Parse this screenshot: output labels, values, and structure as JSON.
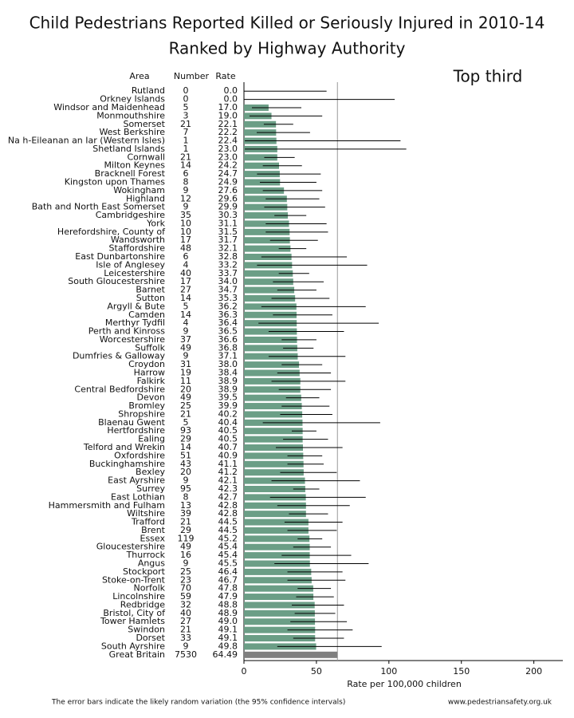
{
  "chart_data": {
    "type": "bar",
    "title": "Child Pedestrians Reported Killed or Seriously Injured in 2010-14",
    "subtitle": "Ranked by Highway Authority",
    "annotation": "Top third",
    "column_headers": [
      "Area",
      "Number",
      "Rate"
    ],
    "xlabel": "Rate per 100,000 children",
    "footnote": "The error bars indicate the likely random variation (the 95% confidence intervals)",
    "source": "www.pedestriansafety.org.uk",
    "categories": [
      "Rutland",
      "Orkney Islands",
      "Windsor and Maidenhead",
      "Monmouthshire",
      "Somerset",
      "West Berkshire",
      "Na h-Eileanan an Iar (Western Isles)",
      "Shetland Islands",
      "Cornwall",
      "Milton Keynes",
      "Bracknell Forest",
      "Kingston upon Thames",
      "Wokingham",
      "Highland",
      "Bath and North East Somerset",
      "Cambridgeshire",
      "York",
      "Herefordshire, County of",
      "Wandsworth",
      "Staffordshire",
      "East Dunbartonshire",
      "Isle of Anglesey",
      "Leicestershire",
      "South Gloucestershire",
      "Barnet",
      "Sutton",
      "Argyll & Bute",
      "Camden",
      "Merthyr Tydfil",
      "Perth and Kinross",
      "Worcestershire",
      "Suffolk",
      "Dumfries & Galloway",
      "Croydon",
      "Harrow",
      "Falkirk",
      "Central Bedfordshire",
      "Devon",
      "Bromley",
      "Shropshire",
      "Blaenau Gwent",
      "Hertfordshire",
      "Ealing",
      "Telford and Wrekin",
      "Oxfordshire",
      "Buckinghamshire",
      "Bexley",
      "East Ayrshire",
      "Surrey",
      "East Lothian",
      "Hammersmith and Fulham",
      "Wiltshire",
      "Trafford",
      "Brent",
      "Essex",
      "Gloucestershire",
      "Thurrock",
      "Angus",
      "Stockport",
      "Stoke-on-Trent",
      "Norfolk",
      "Lincolnshire",
      "Redbridge",
      "Bristol, City of",
      "Tower Hamlets",
      "Swindon",
      "Dorset",
      "South Ayrshire",
      "Great Britain"
    ],
    "numbers": [
      0,
      0,
      5,
      3,
      21,
      7,
      1,
      1,
      21,
      14,
      6,
      8,
      9,
      12,
      9,
      35,
      10,
      10,
      17,
      48,
      6,
      4,
      40,
      17,
      27,
      14,
      5,
      14,
      4,
      9,
      37,
      49,
      9,
      31,
      19,
      11,
      20,
      49,
      25,
      21,
      5,
      93,
      29,
      14,
      51,
      43,
      20,
      9,
      95,
      8,
      13,
      39,
      21,
      29,
      119,
      49,
      16,
      9,
      25,
      23,
      70,
      59,
      32,
      40,
      27,
      21,
      33,
      9,
      7530
    ],
    "values": [
      0,
      0,
      17,
      19,
      22.1,
      22.2,
      22.4,
      23,
      23,
      24.2,
      24.7,
      24.9,
      27.6,
      29.6,
      29.9,
      30.3,
      31.1,
      31.5,
      31.7,
      32.1,
      32.8,
      33.2,
      33.7,
      34,
      34.7,
      35.3,
      36.2,
      36.3,
      36.4,
      36.5,
      36.6,
      36.8,
      37.1,
      38,
      38.4,
      38.9,
      38.9,
      39.5,
      39.9,
      40.2,
      40.4,
      40.5,
      40.5,
      40.7,
      40.9,
      41.1,
      41.2,
      42.1,
      42.3,
      42.7,
      42.8,
      42.8,
      44.5,
      44.5,
      45.2,
      45.4,
      45.4,
      45.5,
      46.4,
      46.7,
      47.8,
      47.9,
      48.8,
      48.9,
      49,
      49.1,
      49.1,
      49.8,
      64.49
    ],
    "value_labels": [
      "0.0",
      "0.0",
      "17.0",
      "19.0",
      "22.1",
      "22.2",
      "22.4",
      "23.0",
      "23.0",
      "24.2",
      "24.7",
      "24.9",
      "27.6",
      "29.6",
      "29.9",
      "30.3",
      "31.1",
      "31.5",
      "31.7",
      "32.1",
      "32.8",
      "33.2",
      "33.7",
      "34.0",
      "34.7",
      "35.3",
      "36.2",
      "36.3",
      "36.4",
      "36.5",
      "36.6",
      "36.8",
      "37.1",
      "38.0",
      "38.4",
      "38.9",
      "38.9",
      "39.5",
      "39.9",
      "40.2",
      "40.4",
      "40.5",
      "40.5",
      "40.7",
      "40.9",
      "41.1",
      "41.2",
      "42.1",
      "42.3",
      "42.7",
      "42.8",
      "42.8",
      "44.5",
      "44.5",
      "45.2",
      "45.4",
      "45.4",
      "45.5",
      "46.4",
      "46.7",
      "47.8",
      "47.9",
      "48.8",
      "48.9",
      "49.0",
      "49.1",
      "49.1",
      "49.8",
      "64.49"
    ],
    "error_low": [
      0,
      0,
      5.5,
      3.8,
      13.7,
      8.8,
      0.6,
      0.6,
      14,
      13,
      9,
      11,
      13,
      15,
      14,
      21,
      15,
      15,
      18,
      24,
      12,
      9,
      24,
      20,
      23,
      19,
      12,
      20,
      10,
      17,
      26,
      27,
      17,
      26,
      23,
      19,
      24,
      29,
      26,
      25,
      13,
      33,
      27,
      22,
      30,
      30,
      25,
      19,
      34,
      18,
      23,
      31,
      28,
      30,
      37,
      34,
      26,
      21,
      30,
      30,
      37,
      36,
      33,
      35,
      32,
      30,
      34,
      23,
      null
    ],
    "error_high": [
      57,
      104,
      39.6,
      54,
      34,
      45.6,
      108,
      112,
      35,
      40,
      53,
      50,
      54,
      52,
      56,
      43,
      57,
      58,
      51,
      43,
      71,
      85,
      45,
      55,
      50,
      59,
      84,
      61,
      93,
      69,
      50,
      48,
      70,
      54,
      60,
      70,
      60,
      52,
      59,
      61,
      94,
      50,
      58,
      68,
      54,
      55,
      64,
      80,
      52,
      84,
      73,
      58,
      68,
      64,
      54,
      60,
      74,
      86,
      68,
      70,
      60,
      62,
      69,
      63,
      71,
      75,
      69,
      95,
      null
    ],
    "colors": [
      "#6b9e86",
      "#6b9e86",
      "#6b9e86",
      "#6b9e86",
      "#6b9e86",
      "#6b9e86",
      "#6b9e86",
      "#6b9e86",
      "#6b9e86",
      "#6b9e86",
      "#6b9e86",
      "#6b9e86",
      "#6b9e86",
      "#6b9e86",
      "#6b9e86",
      "#6b9e86",
      "#6b9e86",
      "#6b9e86",
      "#6b9e86",
      "#6b9e86",
      "#6b9e86",
      "#6b9e86",
      "#6b9e86",
      "#6b9e86",
      "#6b9e86",
      "#6b9e86",
      "#6b9e86",
      "#6b9e86",
      "#6b9e86",
      "#6b9e86",
      "#6b9e86",
      "#6b9e86",
      "#6b9e86",
      "#6b9e86",
      "#6b9e86",
      "#6b9e86",
      "#6b9e86",
      "#6b9e86",
      "#6b9e86",
      "#6b9e86",
      "#6b9e86",
      "#6b9e86",
      "#6b9e86",
      "#6b9e86",
      "#6b9e86",
      "#6b9e86",
      "#6b9e86",
      "#6b9e86",
      "#6b9e86",
      "#6b9e86",
      "#6b9e86",
      "#6b9e86",
      "#6b9e86",
      "#6b9e86",
      "#6b9e86",
      "#6b9e86",
      "#6b9e86",
      "#6b9e86",
      "#6b9e86",
      "#6b9e86",
      "#6b9e86",
      "#6b9e86",
      "#6b9e86",
      "#6b9e86",
      "#6b9e86",
      "#6b9e86",
      "#6b9e86",
      "#6b9e86",
      "#7f7f7f"
    ],
    "xlim": [
      0,
      220
    ],
    "xticks": [
      0,
      50,
      100,
      150,
      200
    ]
  }
}
